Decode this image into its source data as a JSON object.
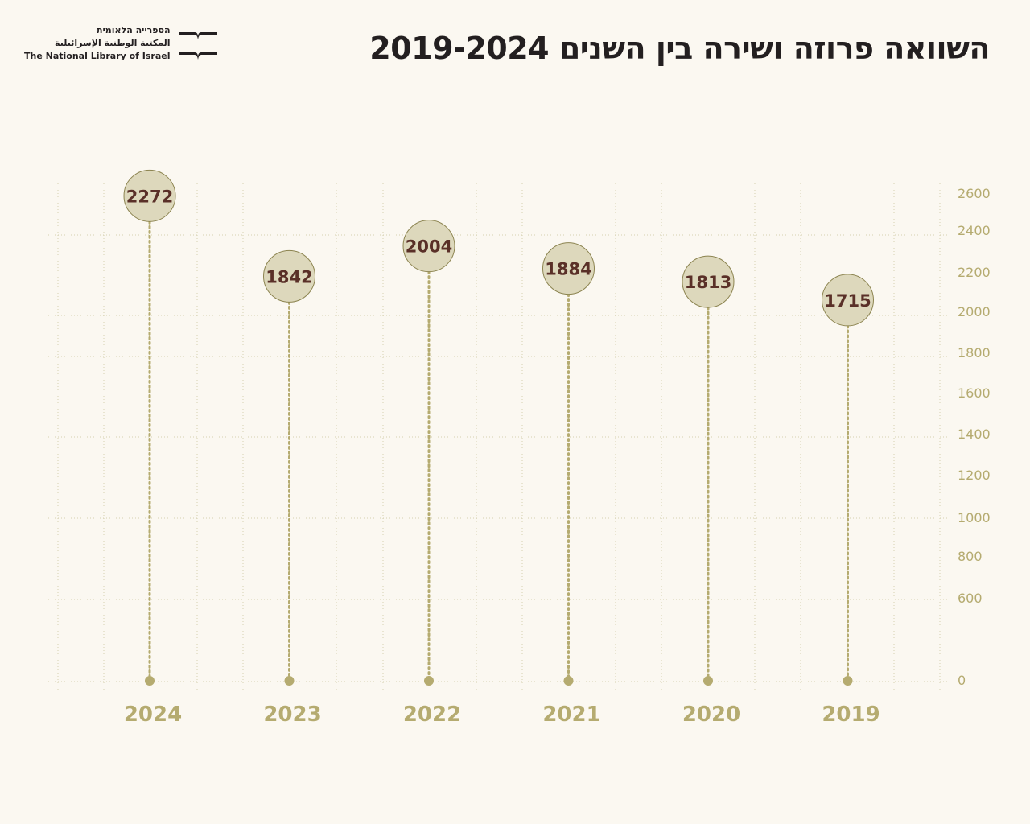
{
  "header": {
    "title": "השוואה פרוזה ושירה בין השנים 2019-2024"
  },
  "logo": {
    "hebrew": "הספרייה הלאומית",
    "arabic": "المكتبة الوطنية الإسرائيلية",
    "english": "The National Library of Israel"
  },
  "colors": {
    "background": "#fbf8f1",
    "accent": "#b5ab70",
    "bubble": "#ddd8bc",
    "value_text": "#5a3028",
    "title_text": "#231f20"
  },
  "chart_data": {
    "type": "scatter",
    "title": "השוואה פרוזה ושירה בין השנים 2019-2024",
    "categories": [
      "2024",
      "2023",
      "2022",
      "2021",
      "2020",
      "2019"
    ],
    "values": [
      2272,
      1842,
      2004,
      1884,
      1813,
      1715
    ],
    "y_ticks": [
      "2600",
      "2400",
      "2200",
      "2000",
      "1800",
      "1600",
      "1400",
      "1200",
      "1000",
      "800",
      "600",
      "0"
    ],
    "ylim": [
      0,
      2600
    ],
    "xlabel": "",
    "ylabel": "",
    "grid": true,
    "axis_side": "right"
  }
}
